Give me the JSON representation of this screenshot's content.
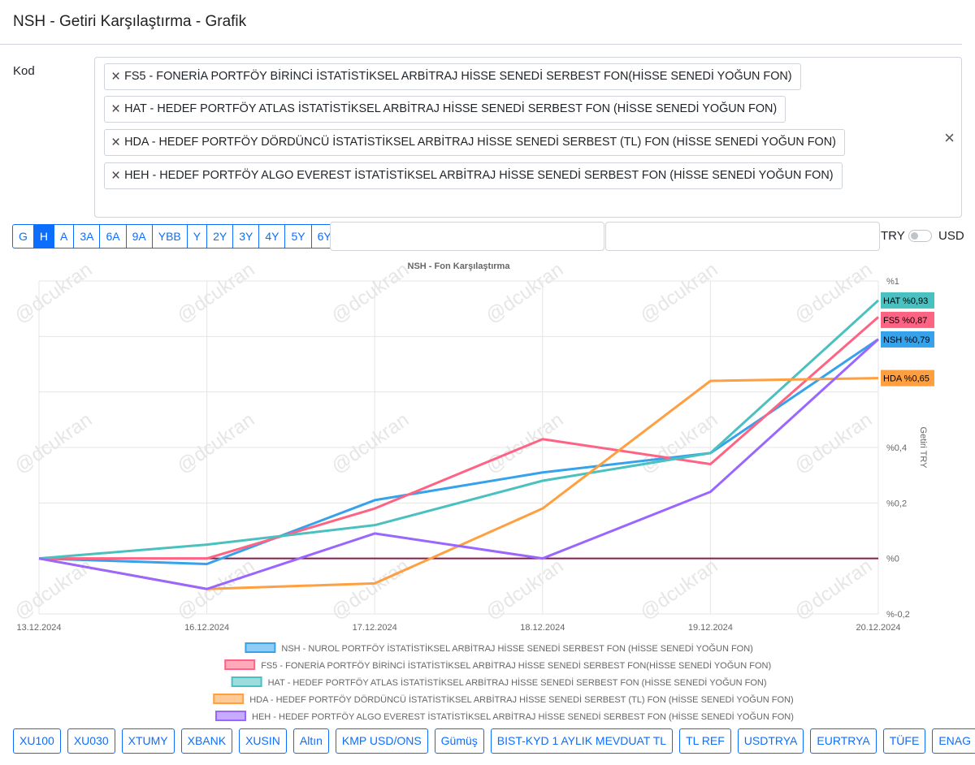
{
  "page": {
    "title": "NSH - Getiri Karşılaştırma - Grafik"
  },
  "filter": {
    "label": "Kod",
    "selected": [
      "FS5 - FONERİA PORTFÖY BİRİNCİ İSTATİSTİKSEL ARBİTRAJ HİSSE SENEDİ SERBEST FON(HİSSE SENEDİ YOĞUN FON)",
      "HAT - HEDEF PORTFÖY ATLAS İSTATİSTİKSEL ARBİTRAJ HİSSE SENEDİ SERBEST FON (HİSSE SENEDİ YOĞUN FON)",
      "HDA - HEDEF PORTFÖY DÖRDÜNCÜ İSTATİSTİKSEL ARBİTRAJ HİSSE SENEDİ SERBEST (TL) FON (HİSSE SENEDİ YOĞUN FON)",
      "HEH - HEDEF PORTFÖY ALGO EVEREST İSTATİSTİKSEL ARBİTRAJ HİSSE SENEDİ SERBEST FON (HİSSE SENEDİ YOĞUN FON)"
    ],
    "remove_icon": "close-icon",
    "clear_icon": "close-icon"
  },
  "periods": {
    "items": [
      "G",
      "H",
      "A",
      "3A",
      "6A",
      "9A",
      "YBB",
      "Y",
      "2Y",
      "3Y",
      "4Y",
      "5Y",
      "6Y"
    ],
    "active": "H"
  },
  "currency": {
    "left": "TRY",
    "right": "USD",
    "usd_enabled": false
  },
  "colors": {
    "accent": "#0d6efd",
    "zero_line": "#8b1a4a"
  },
  "watermark": "@dcukran",
  "chart_data": {
    "type": "line",
    "title": "NSH - Fon Karşılaştırma",
    "ylabel": "Getiri TRY",
    "x": [
      "13.12.2024",
      "16.12.2024",
      "17.12.2024",
      "18.12.2024",
      "19.12.2024",
      "20.12.2024"
    ],
    "ylim": [
      -0.2,
      1.0
    ],
    "y_ticks": [
      -0.2,
      0,
      0.2,
      0.4,
      0.6,
      0.8,
      1.0
    ],
    "y_tick_labels": [
      "%-0,2",
      "%0",
      "%0,2",
      "%0,4",
      "",
      "",
      "%1"
    ],
    "grid": true,
    "legend": "bottom",
    "series": [
      {
        "name": "NSH - NUROL PORTFÖY İSTATİSTİKSEL ARBİTRAJ HİSSE SENEDİ SERBEST FON (HİSSE SENEDİ YOĞUN FON)",
        "short": "NSH",
        "end_label": "NSH %0,79",
        "color": "#36a2eb",
        "values": [
          0,
          -0.02,
          0.21,
          0.31,
          0.38,
          0.79
        ]
      },
      {
        "name": "FS5 - FONERİA PORTFÖY BİRİNCİ İSTATİSTİKSEL ARBİTRAJ HİSSE SENEDİ SERBEST FON(HİSSE SENEDİ YOĞUN FON)",
        "short": "FS5",
        "end_label": "FS5 %0,87",
        "color": "#ff6384",
        "values": [
          0,
          0,
          0.18,
          0.43,
          0.34,
          0.87
        ]
      },
      {
        "name": "HAT - HEDEF PORTFÖY ATLAS İSTATİSTİKSEL ARBİTRAJ HİSSE SENEDİ SERBEST FON (HİSSE SENEDİ YOĞUN FON)",
        "short": "HAT",
        "end_label": "HAT %0,93",
        "color": "#4bc0c0",
        "values": [
          0,
          0.05,
          0.12,
          0.28,
          0.38,
          0.93
        ]
      },
      {
        "name": "HDA - HEDEF PORTFÖY DÖRDÜNCÜ İSTATİSTİKSEL ARBİTRAJ HİSSE SENEDİ SERBEST (TL) FON (HİSSE SENEDİ YOĞUN FON)",
        "short": "HDA",
        "end_label": "HDA %0,65",
        "color": "#ff9f40",
        "values": [
          0,
          -0.11,
          -0.09,
          0.18,
          0.64,
          0.65
        ]
      },
      {
        "name": "HEH - HEDEF PORTFÖY ALGO EVEREST İSTATİSTİKSEL ARBİTRAJ HİSSE SENEDİ SERBEST FON (HİSSE SENEDİ YOĞUN FON)",
        "short": "HEH",
        "end_label": "",
        "color": "#9966ff",
        "values": [
          0,
          -0.11,
          0.09,
          0,
          0.24,
          0.79
        ]
      }
    ]
  },
  "benchmarks": [
    "XU100",
    "XU030",
    "XTUMY",
    "XBANK",
    "XUSIN",
    "Altın",
    "KMP USD/ONS",
    "Gümüş",
    "BIST-KYD 1 AYLIK MEVDUAT TL",
    "TL REF",
    "USDTRYA",
    "EURTRYA",
    "TÜFE",
    "ENAG"
  ]
}
